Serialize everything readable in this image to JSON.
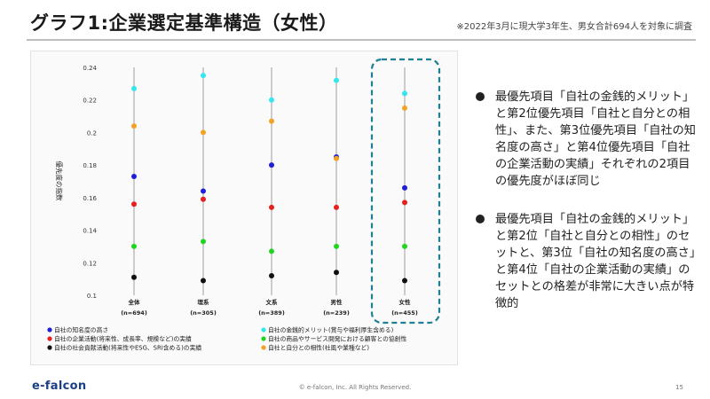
{
  "page": {
    "title": "グラフ1:企業選定基準構造（女性）",
    "note": "※2022年3月に現大学3年生、男女合計694人を対象に調査",
    "logo": "e-falcon",
    "copyright": "© e-falcon, Inc. All Rights Reserved.",
    "page_number": "15"
  },
  "bullets": [
    "最優先項目「自社の金銭的メリット」と第2位優先項目「自社と自分との相性」、また、第3位優先項目「自社の知名度の高さ」と第4位優先項目「自社の企業活動の実績」それぞれの2項目の優先度がほぼ同じ",
    "最優先項目「自社の金銭的メリット」と第2位「自社と自分との相性」のセットと、第3位「自社の知名度の高さ」と第4位「自社の企業活動の実績」のセットとの格差が非常に大きい点が特徴的"
  ],
  "chart_data": {
    "type": "scatter",
    "ylabel": "優先度の指数",
    "ylim": [
      0.1,
      0.24
    ],
    "yticks": [
      "0.24",
      "0.22",
      "0.2",
      "0.18",
      "0.16",
      "0.14",
      "0.12",
      "0.1"
    ],
    "categories": [
      {
        "name": "全体",
        "n": "(n=694)"
      },
      {
        "name": "理系",
        "n": "(n=305)"
      },
      {
        "name": "文系",
        "n": "(n=389)"
      },
      {
        "name": "男性",
        "n": "(n=239)"
      },
      {
        "name": "女性",
        "n": "(n=455)"
      }
    ],
    "highlight_category": "女性",
    "legend_position": "bottom",
    "series": [
      {
        "name": "自社の知名度の高さ",
        "color": "#1f1fd6",
        "values": [
          0.173,
          0.164,
          0.18,
          0.185,
          0.166
        ]
      },
      {
        "name": "自社の金銭的メリット(賞与や福利厚生含める)",
        "color": "#33e6ef",
        "values": [
          0.227,
          0.235,
          0.22,
          0.232,
          0.224
        ]
      },
      {
        "name": "自社の企業活動(将来性、成長率、規模など)の実績",
        "color": "#e61f1f",
        "values": [
          0.156,
          0.159,
          0.154,
          0.154,
          0.157
        ]
      },
      {
        "name": "自社の商品やサービス開発における顧客との協創性",
        "color": "#22d422",
        "values": [
          0.13,
          0.133,
          0.127,
          0.13,
          0.13
        ]
      },
      {
        "name": "自社の社会貢献活動(将来性やESG、SRI含める)の実績",
        "color": "#111111",
        "values": [
          0.111,
          0.109,
          0.112,
          0.114,
          0.109
        ]
      },
      {
        "name": "自社と自分との相性(社風や業種など)",
        "color": "#f2a227",
        "values": [
          0.204,
          0.2,
          0.207,
          0.184,
          0.215
        ]
      }
    ]
  }
}
